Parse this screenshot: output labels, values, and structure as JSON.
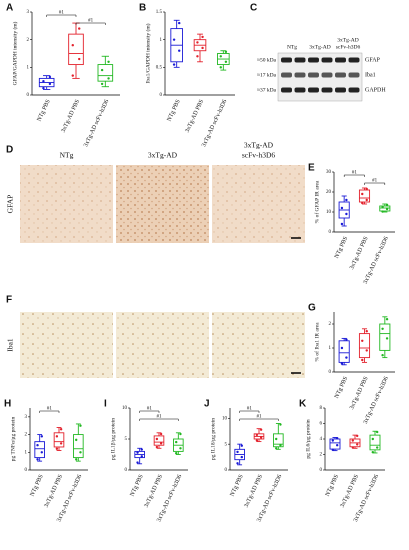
{
  "chart_data": [
    {
      "type": "box",
      "panel": "A",
      "ylabel": "GFAP/GAPDH intensity (m)",
      "ylim": [
        0,
        3
      ],
      "yticks": [
        0,
        1,
        2,
        3
      ],
      "categories": [
        "NTg PBS",
        "3xTg-AD PBS",
        "3xTg-AD scFv-h3D6"
      ],
      "groups": [
        {
          "color": "#1a1ad6",
          "min": 0.2,
          "q1": 0.3,
          "median": 0.45,
          "q3": 0.6,
          "max": 0.7,
          "points": [
            0.25,
            0.4,
            0.5,
            0.65
          ]
        },
        {
          "color": "#e3202b",
          "min": 0.6,
          "q1": 1.1,
          "median": 1.5,
          "q3": 2.2,
          "max": 2.6,
          "points": [
            0.7,
            1.3,
            1.8,
            2.4
          ]
        },
        {
          "color": "#22b822",
          "min": 0.3,
          "q1": 0.5,
          "median": 0.7,
          "q3": 1.1,
          "max": 1.4,
          "points": [
            0.4,
            0.6,
            0.9,
            1.2
          ]
        }
      ],
      "annotations": [
        {
          "text": "#1",
          "between": [
            0,
            1
          ]
        },
        {
          "text": "#1",
          "between": [
            1,
            2
          ]
        }
      ]
    },
    {
      "type": "box",
      "panel": "B",
      "ylabel": "Iba1/GAPDH intensity (m)",
      "ylim": [
        0,
        1.5
      ],
      "yticks": [
        0,
        0.5,
        1,
        1.5
      ],
      "categories": [
        "NTg PBS",
        "3xTg-AD PBS",
        "3xTg-AD scFv-h3D6"
      ],
      "groups": [
        {
          "color": "#1a1ad6",
          "min": 0.5,
          "q1": 0.6,
          "median": 0.9,
          "q3": 1.2,
          "max": 1.35,
          "points": [
            0.55,
            0.8,
            1.0,
            1.3
          ]
        },
        {
          "color": "#e3202b",
          "min": 0.6,
          "q1": 0.8,
          "median": 0.9,
          "q3": 1.0,
          "max": 1.1,
          "points": [
            0.7,
            0.85,
            0.95,
            1.05
          ]
        },
        {
          "color": "#22b822",
          "min": 0.45,
          "q1": 0.55,
          "median": 0.65,
          "q3": 0.75,
          "max": 0.8,
          "points": [
            0.5,
            0.6,
            0.7,
            0.78
          ]
        }
      ],
      "annotations": []
    },
    {
      "type": "box",
      "panel": "E",
      "ylabel": "% of GFAP IR area",
      "ylim": [
        0,
        30
      ],
      "yticks": [
        0,
        10,
        20,
        30
      ],
      "categories": [
        "NTg PBS",
        "3xTg-AD PBS",
        "3xTg-AD scFv-h3D6"
      ],
      "groups": [
        {
          "color": "#1a1ad6",
          "min": 3,
          "q1": 7,
          "median": 11,
          "q3": 15,
          "max": 18,
          "points": [
            4,
            9,
            12,
            16
          ]
        },
        {
          "color": "#e3202b",
          "min": 14,
          "q1": 15,
          "median": 17,
          "q3": 21,
          "max": 22,
          "points": [
            14.5,
            16,
            19,
            21.5
          ]
        },
        {
          "color": "#22b822",
          "min": 10,
          "q1": 10.5,
          "median": 12,
          "q3": 13,
          "max": 14,
          "points": [
            10.2,
            11.5,
            12.5,
            13.5
          ]
        }
      ],
      "annotations": [
        {
          "text": "#1",
          "between": [
            0,
            1
          ]
        },
        {
          "text": "#1",
          "between": [
            1,
            2
          ]
        }
      ]
    },
    {
      "type": "box",
      "panel": "G",
      "ylabel": "% of Iba1 IR area",
      "ylim": [
        0,
        2.5
      ],
      "yticks": [
        0,
        1,
        2
      ],
      "categories": [
        "NTg PBS",
        "3xTg-AD PBS",
        "3xTg-AD scFv-h3D6"
      ],
      "groups": [
        {
          "color": "#1a1ad6",
          "min": 0.3,
          "q1": 0.4,
          "median": 0.8,
          "q3": 1.3,
          "max": 1.4,
          "points": [
            0.35,
            0.6,
            1.0,
            1.35
          ]
        },
        {
          "color": "#e3202b",
          "min": 0.4,
          "q1": 0.6,
          "median": 1.0,
          "q3": 1.6,
          "max": 1.8,
          "points": [
            0.5,
            0.9,
            1.3,
            1.7
          ]
        },
        {
          "color": "#22b822",
          "min": 0.6,
          "q1": 0.9,
          "median": 1.6,
          "q3": 2.0,
          "max": 2.3,
          "points": [
            0.7,
            1.4,
            1.8,
            2.2
          ]
        }
      ],
      "annotations": []
    },
    {
      "type": "box",
      "panel": "H",
      "ylabel": "pg TNFα/µg protein",
      "ylim": [
        0,
        3.5
      ],
      "yticks": [
        0,
        1,
        2,
        3
      ],
      "categories": [
        "NTg PBS",
        "3xTg-AD PBS",
        "3xTg-AD scFv-h3D6"
      ],
      "groups": [
        {
          "color": "#1a1ad6",
          "min": 0.5,
          "q1": 0.7,
          "median": 1.2,
          "q3": 1.6,
          "max": 2.0,
          "points": [
            0.6,
            1.0,
            1.4,
            1.9
          ]
        },
        {
          "color": "#e3202b",
          "min": 1.1,
          "q1": 1.3,
          "median": 1.6,
          "q3": 2.1,
          "max": 2.4,
          "points": [
            1.2,
            1.5,
            1.9,
            2.3
          ]
        },
        {
          "color": "#22b822",
          "min": 0.5,
          "q1": 0.7,
          "median": 1.2,
          "q3": 2.0,
          "max": 2.6,
          "points": [
            0.6,
            1.0,
            1.7,
            2.5
          ]
        }
      ],
      "annotations": [
        {
          "text": "#1",
          "between": [
            0,
            1
          ]
        }
      ]
    },
    {
      "type": "box",
      "panel": "I",
      "ylabel": "pg IL1β/µg protein",
      "ylim": [
        0,
        10
      ],
      "yticks": [
        0,
        5,
        10
      ],
      "categories": [
        "NTg PBS",
        "3xTg-AD PBS",
        "3xTg-AD scFv-h3D6"
      ],
      "groups": [
        {
          "color": "#1a1ad6",
          "min": 1,
          "q1": 2,
          "median": 2.5,
          "q3": 3,
          "max": 3.5,
          "points": [
            1.2,
            2.2,
            2.8,
            3.3
          ]
        },
        {
          "color": "#e3202b",
          "min": 3.5,
          "q1": 4,
          "median": 4.5,
          "q3": 5.5,
          "max": 6,
          "points": [
            3.7,
            4.3,
            5,
            5.8
          ]
        },
        {
          "color": "#22b822",
          "min": 2.5,
          "q1": 3,
          "median": 4,
          "q3": 5,
          "max": 6,
          "points": [
            2.7,
            3.5,
            4.5,
            5.8
          ]
        }
      ],
      "annotations": [
        {
          "text": "#1",
          "between": [
            0,
            1
          ]
        },
        {
          "text": "#1",
          "between": [
            0,
            2
          ]
        }
      ]
    },
    {
      "type": "box",
      "panel": "J",
      "ylabel": "pg IL18/µg protein",
      "ylim": [
        0,
        12
      ],
      "yticks": [
        0,
        5,
        10
      ],
      "categories": [
        "NTg PBS",
        "3xTg-AD PBS",
        "3xTg-AD scFv-h3D6"
      ],
      "groups": [
        {
          "color": "#1a1ad6",
          "min": 1,
          "q1": 2,
          "median": 3,
          "q3": 4,
          "max": 5,
          "points": [
            1.3,
            2.5,
            3.5,
            4.7
          ]
        },
        {
          "color": "#e3202b",
          "min": 5.5,
          "q1": 6,
          "median": 6.5,
          "q3": 7,
          "max": 8,
          "points": [
            5.7,
            6.3,
            6.8,
            7.8
          ]
        },
        {
          "color": "#22b822",
          "min": 4,
          "q1": 4.5,
          "median": 5,
          "q3": 7,
          "max": 9,
          "points": [
            4.2,
            4.8,
            6,
            8.8
          ]
        }
      ],
      "annotations": [
        {
          "text": "#1",
          "between": [
            0,
            1
          ]
        },
        {
          "text": "#1",
          "between": [
            0,
            2
          ]
        }
      ]
    },
    {
      "type": "box",
      "panel": "K",
      "ylabel": "pg IL6/µg protein",
      "ylim": [
        0,
        8
      ],
      "yticks": [
        0,
        2,
        4,
        6,
        8
      ],
      "categories": [
        "NTg PBS",
        "3xTg-AD PBS",
        "3xTg-AD scFv-h3D6"
      ],
      "groups": [
        {
          "color": "#1a1ad6",
          "min": 2.5,
          "q1": 2.7,
          "median": 3.5,
          "q3": 4,
          "max": 4.2,
          "points": [
            2.6,
            3.2,
            3.8,
            4.1
          ]
        },
        {
          "color": "#e3202b",
          "min": 2.8,
          "q1": 3,
          "median": 3.5,
          "q3": 4,
          "max": 4.5,
          "points": [
            2.9,
            3.3,
            3.8,
            4.4
          ]
        },
        {
          "color": "#22b822",
          "min": 2.2,
          "q1": 2.6,
          "median": 3.2,
          "q3": 4.5,
          "max": 5,
          "points": [
            2.3,
            2.9,
            4,
            4.9
          ]
        }
      ],
      "annotations": []
    }
  ],
  "blot": {
    "panel": "C",
    "lanes": [
      [
        "NTg"
      ],
      [
        "3xTg-AD"
      ],
      [
        "3xTg-AD",
        "scFv-h3D6"
      ]
    ],
    "bands": [
      {
        "size": "≈50 kDa",
        "protein": "GFAP"
      },
      {
        "size": "≈17 kDa",
        "protein": "Iba1"
      },
      {
        "size": "≈37 kDa",
        "protein": "GAPDH"
      }
    ]
  },
  "micrographs": {
    "columns": [
      [
        "NTg"
      ],
      [
        "3xTg-AD"
      ],
      [
        "3xTg-AD",
        "scFv-h3D6"
      ]
    ],
    "rows": [
      {
        "panel": "D",
        "label": "GFAP"
      },
      {
        "panel": "F",
        "label": "Iba1"
      }
    ]
  }
}
